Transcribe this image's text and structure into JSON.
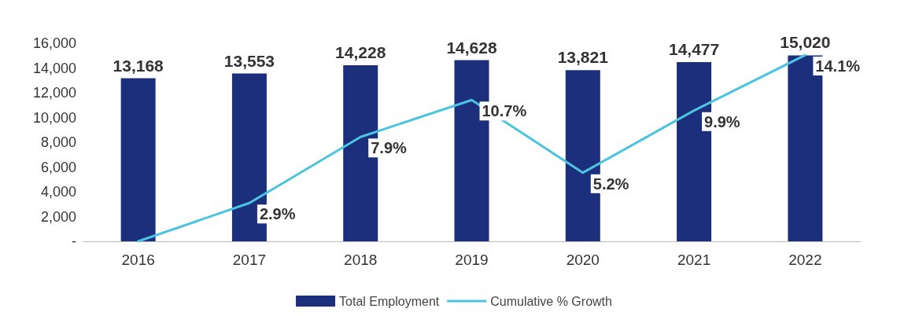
{
  "chart_data": {
    "type": "bar",
    "categories": [
      "2016",
      "2017",
      "2018",
      "2019",
      "2020",
      "2021",
      "2022"
    ],
    "series": [
      {
        "name": "Total Employment",
        "color": "#1b2f7c",
        "values": [
          13168,
          13553,
          14228,
          14628,
          13821,
          14477,
          15020
        ],
        "value_labels": [
          "13,168",
          "13,553",
          "14,228",
          "14,628",
          "13,821",
          "14,477",
          "15,020"
        ]
      },
      {
        "name": "Cumulative % Growth",
        "type": "line",
        "axis": "y2",
        "color": "#4cc4e0",
        "values": [
          0,
          2.9,
          7.9,
          10.7,
          5.2,
          9.9,
          14.1
        ],
        "value_labels": [
          null,
          "2.9%",
          "7.9%",
          "10.7%",
          "5.2%",
          "9.9%",
          "14.1%"
        ]
      }
    ],
    "ylim": [
      0,
      16000
    ],
    "yticks": [
      {
        "value": 0,
        "label": "-"
      },
      {
        "value": 2000,
        "label": "2,000"
      },
      {
        "value": 4000,
        "label": "4,000"
      },
      {
        "value": 6000,
        "label": "6,000"
      },
      {
        "value": 8000,
        "label": "8,000"
      },
      {
        "value": 10000,
        "label": "10,000"
      },
      {
        "value": 12000,
        "label": "12,000"
      },
      {
        "value": 14000,
        "label": "14,000"
      },
      {
        "value": 16000,
        "label": "16,000"
      }
    ],
    "legend": "bottom",
    "grid": false,
    "marker": "none",
    "line_style": "solid"
  }
}
